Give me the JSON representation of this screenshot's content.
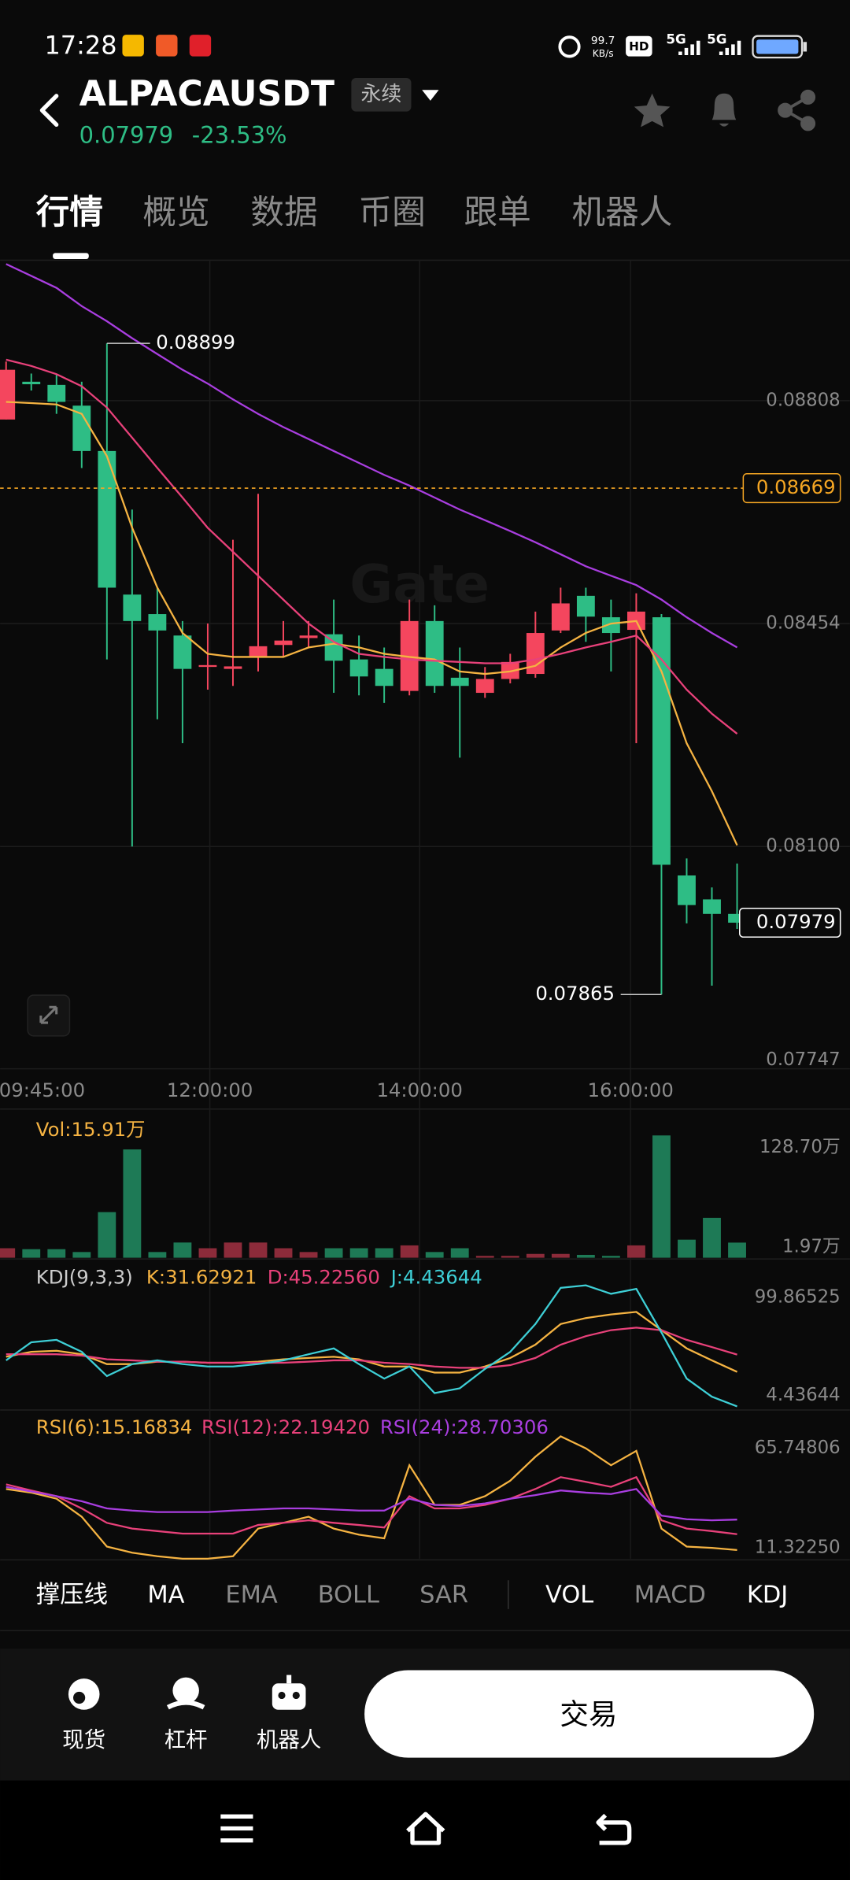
{
  "status_bar": {
    "time": "17:28",
    "net_speed": "99.7",
    "net_unit": "KB/s",
    "hd": "HD",
    "sig1": "5G",
    "sig2": "5G"
  },
  "header": {
    "symbol": "ALPACAUSDT",
    "badge": "永续",
    "price": "0.07979",
    "change": "-23.53%"
  },
  "tabs": [
    "行情",
    "概览",
    "数据",
    "币圈",
    "跟单",
    "机器人"
  ],
  "active_tab": 0,
  "watermark": "Gate",
  "chart_data": [
    {
      "type": "candlestick",
      "up_color": "#f4465e",
      "down_color": "#2ebd85",
      "grid": true,
      "open": [
        0.08778,
        0.08838,
        0.08833,
        0.088,
        0.08728,
        0.085,
        0.08469,
        0.08435,
        0.08386,
        0.08382,
        0.08401,
        0.0842,
        0.08431,
        0.08437,
        0.08397,
        0.08382,
        0.08347,
        0.08458,
        0.08368,
        0.08344,
        0.08366,
        0.08374,
        0.08443,
        0.08498,
        0.08464,
        0.08444,
        0.08464,
        0.08054,
        0.08016,
        0.07993
      ],
      "high": [
        0.0887,
        0.08851,
        0.0885,
        0.08838,
        0.08899,
        0.08635,
        0.08511,
        0.08458,
        0.08454,
        0.08587,
        0.0866,
        0.08458,
        0.08458,
        0.08492,
        0.08435,
        0.08416,
        0.08492,
        0.08483,
        0.08416,
        0.08385,
        0.08406,
        0.08473,
        0.08511,
        0.08511,
        0.08492,
        0.08502,
        0.08469,
        0.08081,
        0.08035,
        0.08073
      ],
      "low": [
        0.08778,
        0.08824,
        0.08787,
        0.08701,
        0.08397,
        0.081,
        0.08302,
        0.08264,
        0.08349,
        0.08355,
        0.08378,
        0.08401,
        0.08416,
        0.08344,
        0.0834,
        0.08328,
        0.0834,
        0.08344,
        0.08241,
        0.08336,
        0.08359,
        0.08368,
        0.08439,
        0.08425,
        0.08378,
        0.08264,
        0.07865,
        0.07978,
        0.07879,
        0.07969
      ],
      "close": [
        0.08857,
        0.08834,
        0.08806,
        0.08728,
        0.08511,
        0.08458,
        0.08443,
        0.08382,
        0.08388,
        0.08386,
        0.08418,
        0.08427,
        0.08435,
        0.08395,
        0.0837,
        0.08355,
        0.08458,
        0.08355,
        0.08355,
        0.08366,
        0.08393,
        0.08439,
        0.08486,
        0.08465,
        0.08439,
        0.08473,
        0.08071,
        0.08007,
        0.07993,
        0.07979
      ],
      "series": [
        {
          "color": "#f5b342",
          "values": [
            0.08806,
            0.08804,
            0.08802,
            0.08787,
            0.0872,
            0.08606,
            0.08511,
            0.08439,
            0.08406,
            0.08401,
            0.08401,
            0.08401,
            0.08416,
            0.08422,
            0.08416,
            0.08406,
            0.08401,
            0.08397,
            0.08378,
            0.08374,
            0.08378,
            0.08387,
            0.08416,
            0.08439,
            0.08454,
            0.08458,
            0.08378,
            0.08264,
            0.08188,
            0.08102
          ]
        },
        {
          "color": "#e8417a",
          "values": [
            0.08873,
            0.08863,
            0.0885,
            0.08831,
            0.08797,
            0.08749,
            0.08701,
            0.08654,
            0.08606,
            0.08568,
            0.0853,
            0.08492,
            0.08454,
            0.08425,
            0.08406,
            0.08401,
            0.08397,
            0.08395,
            0.08393,
            0.08391,
            0.08391,
            0.08397,
            0.08406,
            0.08416,
            0.08425,
            0.08435,
            0.08397,
            0.08349,
            0.08311,
            0.08279
          ]
        },
        {
          "color": "#a93ee0",
          "values": [
            0.09025,
            0.09006,
            0.08987,
            0.08958,
            0.08934,
            0.08907,
            0.08882,
            0.08857,
            0.08835,
            0.0881,
            0.08787,
            0.08766,
            0.08747,
            0.08728,
            0.08709,
            0.0869,
            0.08673,
            0.08654,
            0.08635,
            0.08618,
            0.08601,
            0.08583,
            0.08564,
            0.08545,
            0.0853,
            0.08515,
            0.08492,
            0.08464,
            0.08439,
            0.08416
          ]
        }
      ],
      "ylim": [
        0.07744,
        0.09031
      ],
      "yticks": [
        0.08808,
        0.08454,
        {
          "value": 0.081,
          "label": "0.08100"
        },
        0.07747
      ],
      "reference_lines": [
        {
          "value": 0.08669,
          "color": "#f5a623"
        }
      ],
      "xlabels": [
        "09:45:00",
        "12:00:00",
        "14:00:00",
        "16:00:00"
      ]
    },
    {
      "type": "bar",
      "title": "Vol:15.91万",
      "up_color": "#8c2b3a",
      "down_color": "#1e7a56",
      "values": [
        10,
        9,
        9,
        6,
        48,
        114,
        6,
        16,
        10,
        16,
        16,
        10,
        6,
        10,
        10,
        10,
        13,
        6,
        10,
        1.97,
        1.97,
        4,
        4,
        3,
        1.97,
        13,
        128.7,
        19,
        42,
        15.91
      ],
      "ylim": [
        0,
        128.7
      ],
      "yticks": [
        {
          "value": 128.7,
          "label": "128.70万"
        },
        {
          "value": 1.97,
          "label": "1.97万"
        }
      ]
    },
    {
      "type": "line",
      "title": "KDJ(9,3,3)",
      "ylim": [
        4.43644,
        99.86525
      ],
      "yticks": [
        99.86525,
        4.43644
      ],
      "series": [
        {
          "name": "K:31.62921",
          "color": "#f5b342",
          "values": [
            43.6,
            47.4,
            48.3,
            45.5,
            37.8,
            37.8,
            39.7,
            39.7,
            38.8,
            38.8,
            39.7,
            41.6,
            42.6,
            43.6,
            41.6,
            35.9,
            35.9,
            31.1,
            31.1,
            35.9,
            42.6,
            53.1,
            69.3,
            74.1,
            76.9,
            78.9,
            64.5,
            50.2,
            40.7,
            31.62921
          ]
        },
        {
          "name": "D:45.22560",
          "color": "#e8417a",
          "values": [
            45.5,
            45.5,
            45.5,
            44.5,
            41.6,
            40.7,
            39.7,
            39.7,
            38.8,
            38.8,
            38.8,
            38.8,
            39.7,
            40.7,
            40.7,
            38.8,
            37.8,
            35.9,
            34.9,
            34.9,
            36.9,
            42.6,
            53.1,
            59.8,
            64.5,
            66.5,
            64.5,
            56.9,
            51.2,
            45.2256
          ]
        },
        {
          "name": "J:4.43644",
          "color": "#3ecfd6",
          "values": [
            40.7,
            55.0,
            56.9,
            47.4,
            28.3,
            37.8,
            40.7,
            37.8,
            35.9,
            35.9,
            37.8,
            40.7,
            45.5,
            50.2,
            37.8,
            26.4,
            35.9,
            14.9,
            18.7,
            34.0,
            47.4,
            69.3,
            97.9,
            99.86525,
            93.2,
            97.0,
            62.6,
            26.4,
            12.1,
            4.43644
          ]
        }
      ]
    },
    {
      "type": "line",
      "ylim": [
        11.3225,
        65.74806
      ],
      "yticks": [
        65.74806,
        {
          "value": 11.3225,
          "label": "11.32250"
        }
      ],
      "series": [
        {
          "name": "RSI(6):15.16834",
          "color": "#f5b342",
          "values": [
            42.3,
            40.7,
            38.0,
            30.0,
            16.7,
            14.0,
            12.4,
            11.3225,
            11.3225,
            12.4,
            24.7,
            27.3,
            30.0,
            24.7,
            22.0,
            20.4,
            52.9,
            35.3,
            35.3,
            39.1,
            46.0,
            56.7,
            65.74806,
            60.4,
            52.9,
            59.3,
            24.7,
            16.7,
            16.1,
            15.16834
          ]
        },
        {
          "name": "RSI(12):22.19420",
          "color": "#e8417a",
          "values": [
            44.4,
            41.7,
            39.1,
            33.7,
            27.3,
            24.7,
            23.6,
            22.5,
            22.5,
            22.5,
            26.3,
            27.3,
            28.4,
            27.3,
            26.3,
            25.2,
            39.1,
            33.7,
            33.7,
            35.3,
            38.0,
            42.3,
            47.6,
            45.5,
            43.3,
            47.6,
            28.4,
            24.7,
            23.6,
            22.1942
          ]
        },
        {
          "name": "RSI(24):28.70306",
          "color": "#a93ee0",
          "values": [
            43.3,
            41.2,
            39.1,
            36.9,
            33.7,
            32.7,
            32.1,
            32.1,
            32.1,
            32.7,
            33.2,
            33.7,
            33.7,
            33.2,
            32.7,
            32.7,
            38.0,
            35.3,
            34.8,
            35.9,
            38.0,
            39.6,
            41.7,
            40.7,
            40.1,
            42.3,
            30.5,
            28.9,
            28.4,
            28.70306
          ]
        }
      ]
    }
  ],
  "indicator_tabs": [
    "撑压线",
    "MA",
    "EMA",
    "BOLL",
    "SAR",
    "VOL",
    "MACD",
    "KDJ"
  ],
  "active_indicators": [
    0,
    1,
    5,
    7
  ],
  "bottom_bar": {
    "items": [
      "现货",
      "杠杆",
      "机器人"
    ],
    "trade_button": "交易"
  }
}
